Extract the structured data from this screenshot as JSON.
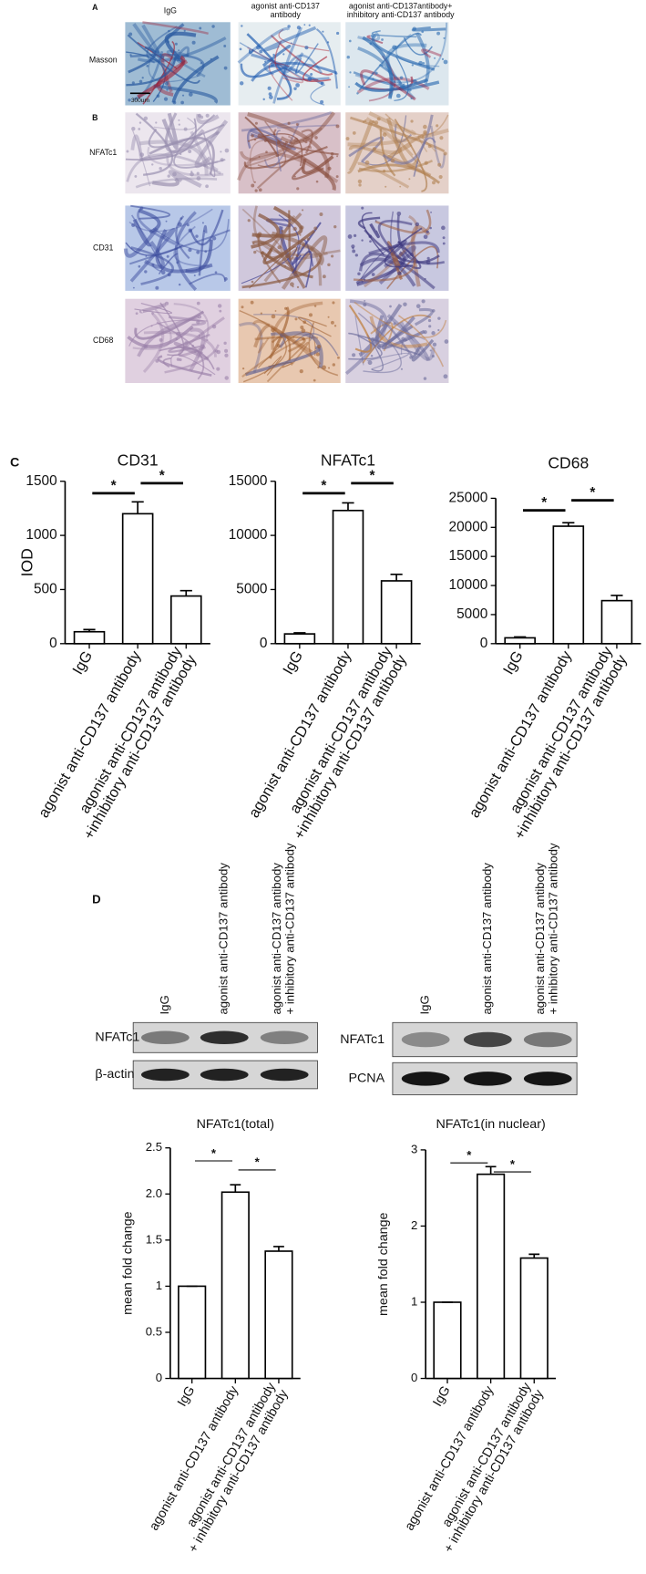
{
  "panel_a": {
    "label": "A",
    "columns": [
      "IgG",
      "agonist anti-CD137\nantibody",
      "agonist anti-CD137antibody+\ninhibitory anti-CD137 antibody"
    ],
    "row_label": "Masson",
    "scale_bar": "300um"
  },
  "panel_b": {
    "label": "B",
    "rows": [
      "NFATc1",
      "CD31",
      "CD68"
    ]
  },
  "panel_c": {
    "label": "C"
  },
  "panel_d": {
    "label": "D",
    "blots": [
      {
        "columns": [
          "IgG",
          "agonist anti-CD137 antibody",
          "agonist anti-CD137 antibody\n+ inhibitory anti-CD137 antibody"
        ],
        "rows": [
          "NFATc1",
          "β-actin"
        ]
      },
      {
        "columns": [
          "IgG",
          "agonist anti-CD137 antibody",
          "agonist anti-CD137 antibody\n+ inhibitory anti-CD137 antibody"
        ],
        "rows": [
          "NFATc1",
          "PCNA"
        ]
      }
    ]
  },
  "chart_data": [
    {
      "type": "bar",
      "title": "CD31",
      "ylabel": "IOD",
      "categories": [
        "IgG",
        "agonist anti-CD137 antibody",
        "agonist anti-CD137 antibody\n+inhibitory anti-CD137 antibody"
      ],
      "values": [
        110,
        1200,
        440
      ],
      "errors": [
        20,
        110,
        50
      ],
      "ylim": [
        0,
        1500
      ],
      "yticks": [
        0,
        500,
        1000,
        1500
      ],
      "annotations": [
        "*",
        "*"
      ]
    },
    {
      "type": "bar",
      "title": "NFATc1",
      "categories": [
        "IgG",
        "agonist anti-CD137 antibody",
        "agonist anti-CD137 antibody\n+inhibitory anti-CD137 antibody"
      ],
      "values": [
        900,
        12300,
        5800
      ],
      "errors": [
        100,
        700,
        600
      ],
      "ylim": [
        0,
        15000
      ],
      "yticks": [
        0,
        5000,
        10000,
        15000
      ],
      "annotations": [
        "*",
        "*"
      ]
    },
    {
      "type": "bar",
      "title": "CD68",
      "categories": [
        "IgG",
        "agonist anti-CD137 antibody",
        "agonist anti-CD137 antibody\n+inhibitory anti-CD137 antibody"
      ],
      "values": [
        1000,
        20200,
        7400
      ],
      "errors": [
        150,
        600,
        900
      ],
      "ylim": [
        0,
        25000
      ],
      "yticks": [
        0,
        5000,
        10000,
        15000,
        20000,
        25000
      ],
      "annotations": [
        "*",
        "*"
      ]
    },
    {
      "type": "bar",
      "title": "NFATc1(total)",
      "ylabel": "mean fold change",
      "categories": [
        "IgG",
        "agonist anti-CD137 antibody",
        "agonist anti-CD137 antibody\n+ inhibitory anti-CD137 antibody"
      ],
      "values": [
        1,
        2.02,
        1.38
      ],
      "errors": [
        0,
        0.08,
        0.05
      ],
      "ylim": [
        0,
        2.5
      ],
      "yticks": [
        0,
        0.5,
        1,
        1.5,
        {
          "value": 2,
          "label": "2.0"
        },
        2.5
      ],
      "annotations": [
        "*",
        "*"
      ]
    },
    {
      "type": "bar",
      "title": "NFATc1(in nuclear)",
      "ylabel": "mean fold change",
      "categories": [
        "IgG",
        "agonist anti-CD137 antibody",
        "agonist anti-CD137 antibody\n+ inhibitory anti-CD137 antibody"
      ],
      "values": [
        1,
        2.68,
        1.58
      ],
      "errors": [
        0,
        0.1,
        0.05
      ],
      "ylim": [
        0,
        3
      ],
      "yticks": [
        0,
        1,
        2,
        3
      ],
      "annotations": [
        "*",
        "*"
      ]
    }
  ]
}
